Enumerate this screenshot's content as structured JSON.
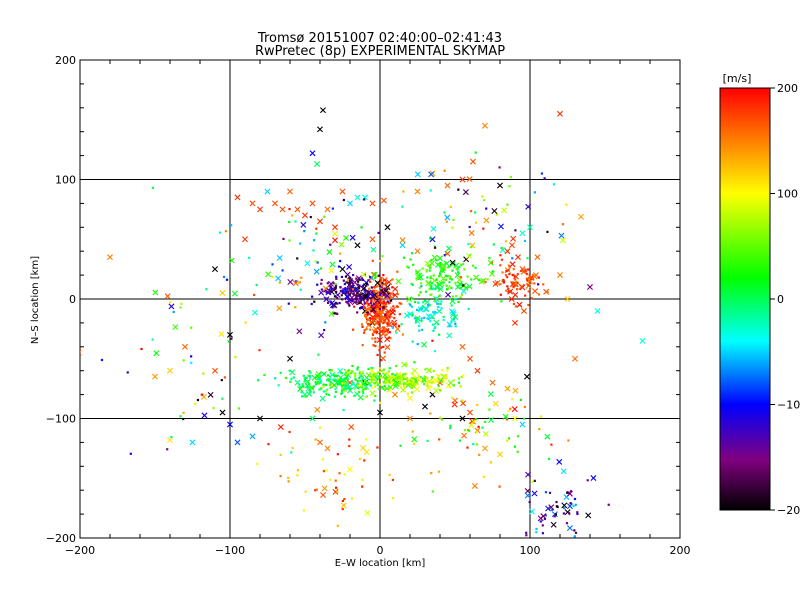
{
  "chart_data": {
    "type": "scatter",
    "title": "Tromsø 20151007 02:40:00–02:41:43",
    "subtitle": "RwPretec (8p) EXPERIMENTAL SKYMAP",
    "xlabel": "E–W location [km]",
    "ylabel": "N–S location [km]",
    "xlim": [
      -200,
      200
    ],
    "ylim": [
      -200,
      200
    ],
    "xticks": [
      -200,
      -100,
      0,
      100,
      200
    ],
    "yticks": [
      -200,
      -100,
      0,
      100,
      200
    ],
    "xtick_labels": [
      "−200",
      "−100",
      "0",
      "100",
      "200"
    ],
    "ytick_labels": [
      "−200",
      "−100",
      "0",
      "100",
      "200"
    ],
    "grid": true,
    "colorbar": {
      "label": "[m/s]",
      "range": [
        -200,
        200
      ],
      "ticks": [
        200,
        100,
        0,
        -100,
        -200
      ],
      "tick_labels": [
        "200",
        "100",
        "0",
        "−100",
        "−200"
      ],
      "colors": [
        "#000000",
        "#800080",
        "#0000ff",
        "#00ffff",
        "#00ff00",
        "#ffff00",
        "#ff0000"
      ]
    },
    "series": [
      {
        "marker": "x",
        "points": [
          [
            -180,
            35,
            150
          ],
          [
            -140,
            -118,
            110
          ],
          [
            -125,
            -120,
            -50
          ],
          [
            -110,
            25,
            -200
          ],
          [
            -105,
            5,
            120
          ],
          [
            -100,
            -30,
            -200
          ],
          [
            -95,
            85,
            180
          ],
          [
            -90,
            50,
            180
          ],
          [
            -85,
            80,
            170
          ],
          [
            -80,
            75,
            180
          ],
          [
            -75,
            90,
            -50
          ],
          [
            -70,
            80,
            170
          ],
          [
            -65,
            75,
            170
          ],
          [
            -60,
            90,
            160
          ],
          [
            -55,
            75,
            170
          ],
          [
            -50,
            70,
            180
          ],
          [
            -45,
            80,
            170
          ],
          [
            -40,
            65,
            180
          ],
          [
            -35,
            75,
            160
          ],
          [
            -30,
            60,
            180
          ],
          [
            -40,
            142,
            -200
          ],
          [
            -38,
            158,
            -200
          ],
          [
            -45,
            122,
            -100
          ],
          [
            -42,
            113,
            0
          ],
          [
            -25,
            90,
            170
          ],
          [
            -20,
            80,
            -50
          ],
          [
            -15,
            85,
            -30
          ],
          [
            -10,
            85,
            -40
          ],
          [
            -5,
            80,
            170
          ],
          [
            5,
            60,
            -200
          ],
          [
            25,
            90,
            150
          ],
          [
            35,
            105,
            140
          ],
          [
            45,
            95,
            160
          ],
          [
            55,
            100,
            180
          ],
          [
            62,
            115,
            170
          ],
          [
            70,
            145,
            150
          ],
          [
            80,
            95,
            -200
          ],
          [
            95,
            55,
            -30
          ],
          [
            100,
            60,
            -20
          ],
          [
            105,
            35,
            160
          ],
          [
            120,
            155,
            180
          ],
          [
            85,
            40,
            180
          ],
          [
            88,
            45,
            170
          ],
          [
            92,
            35,
            180
          ],
          [
            95,
            25,
            170
          ],
          [
            100,
            15,
            150
          ],
          [
            104,
            20,
            160
          ],
          [
            96,
            -10,
            170
          ],
          [
            90,
            -20,
            180
          ],
          [
            120,
            20,
            150
          ],
          [
            125,
            0,
            120
          ],
          [
            130,
            -50,
            160
          ],
          [
            140,
            10,
            -150
          ],
          [
            145,
            -10,
            -30
          ],
          [
            175,
            -35,
            -30
          ],
          [
            -110,
            -60,
            170
          ],
          [
            -105,
            -95,
            -200
          ],
          [
            -100,
            -105,
            -100
          ],
          [
            -95,
            -120,
            -80
          ],
          [
            -85,
            -115,
            -60
          ],
          [
            -80,
            -100,
            -200
          ],
          [
            -60,
            -50,
            -200
          ],
          [
            -55,
            -70,
            -10
          ],
          [
            -50,
            -80,
            -10
          ],
          [
            -45,
            -100,
            0
          ],
          [
            -40,
            -120,
            160
          ],
          [
            -35,
            -125,
            150
          ],
          [
            -20,
            -70,
            170
          ],
          [
            -10,
            -70,
            -200
          ],
          [
            0,
            -95,
            -200
          ],
          [
            10,
            -80,
            150
          ],
          [
            20,
            -100,
            150
          ],
          [
            30,
            -90,
            -200
          ],
          [
            35,
            -80,
            -200
          ],
          [
            40,
            -70,
            170
          ],
          [
            50,
            -85,
            160
          ],
          [
            55,
            -100,
            -200
          ],
          [
            60,
            -95,
            170
          ],
          [
            65,
            -110,
            150
          ],
          [
            70,
            -125,
            140
          ],
          [
            80,
            -130,
            120
          ],
          [
            90,
            -100,
            100
          ],
          [
            95,
            -105,
            -50
          ],
          [
            98,
            -65,
            -200
          ],
          [
            55,
            -40,
            160
          ],
          [
            60,
            -50,
            170
          ],
          [
            65,
            -60,
            180
          ],
          [
            75,
            -70,
            160
          ],
          [
            85,
            -75,
            140
          ],
          [
            -25,
            25,
            -200
          ],
          [
            -20,
            15,
            -200
          ],
          [
            -15,
            5,
            -200
          ],
          [
            -10,
            -10,
            -200
          ],
          [
            -5,
            -20,
            -200
          ],
          [
            0,
            -5,
            -200
          ],
          [
            5,
            10,
            -200
          ],
          [
            -15,
            45,
            -200
          ],
          [
            -5,
            50,
            170
          ],
          [
            15,
            45,
            -50
          ],
          [
            25,
            40,
            150
          ],
          [
            35,
            50,
            -100
          ],
          [
            -130,
            -40,
            160
          ],
          [
            -140,
            -60,
            120
          ],
          [
            -150,
            -65,
            140
          ]
        ]
      },
      {
        "marker": "dot",
        "clusters": [
          {
            "cx": 0,
            "cy": -10,
            "sx": 6,
            "sy": 15,
            "n": 260,
            "vmin": 150,
            "vmax": 200
          },
          {
            "cx": -18,
            "cy": 5,
            "sx": 12,
            "sy": 8,
            "n": 200,
            "vmin": -200,
            "vmax": -100
          },
          {
            "cx": 40,
            "cy": 18,
            "sx": 15,
            "sy": 10,
            "n": 140,
            "vmin": 0,
            "vmax": 60
          },
          {
            "cx": 35,
            "cy": -15,
            "sx": 10,
            "sy": 10,
            "n": 90,
            "vmin": -60,
            "vmax": 10
          },
          {
            "cx": -30,
            "cy": -70,
            "sx": 18,
            "sy": 6,
            "n": 220,
            "vmin": -30,
            "vmax": 40
          },
          {
            "cx": 15,
            "cy": -68,
            "sx": 18,
            "sy": 5,
            "n": 200,
            "vmin": 30,
            "vmax": 110
          },
          {
            "cx": 90,
            "cy": 15,
            "sx": 8,
            "sy": 8,
            "n": 80,
            "vmin": 150,
            "vmax": 200
          },
          {
            "cx": 115,
            "cy": -175,
            "sx": 15,
            "sy": 15,
            "n": 60,
            "vmin": -200,
            "vmax": -40
          },
          {
            "cx": -30,
            "cy": -145,
            "sx": 25,
            "sy": 20,
            "n": 55,
            "vmin": 90,
            "vmax": 200
          },
          {
            "cx": 60,
            "cy": -110,
            "sx": 25,
            "sy": 20,
            "n": 70,
            "vmin": -20,
            "vmax": 200
          },
          {
            "cx": 60,
            "cy": 60,
            "sx": 35,
            "sy": 30,
            "n": 90,
            "vmin": -200,
            "vmax": 200
          },
          {
            "cx": -50,
            "cy": 30,
            "sx": 30,
            "sy": 30,
            "n": 80,
            "vmin": -200,
            "vmax": 200
          },
          {
            "cx": -120,
            "cy": -60,
            "sx": 35,
            "sy": 40,
            "n": 45,
            "vmin": -200,
            "vmax": 200
          }
        ]
      }
    ]
  }
}
